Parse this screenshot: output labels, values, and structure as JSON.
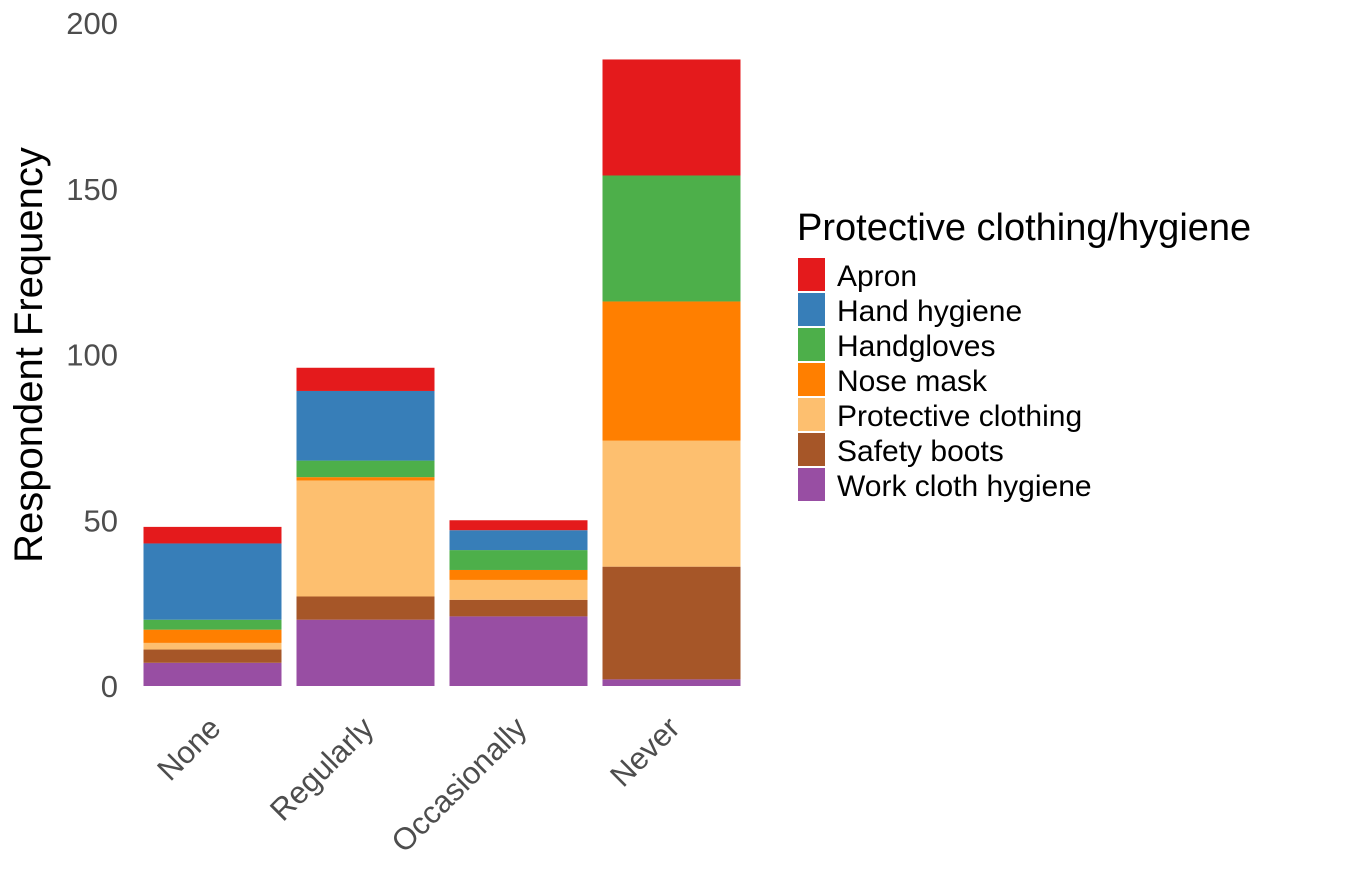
{
  "chart_data": {
    "type": "bar",
    "stacked": true,
    "title": "",
    "xlabel": "",
    "ylabel": "Respondent Frequency",
    "ylim": [
      0,
      200
    ],
    "yticks": [
      0,
      50,
      100,
      150,
      200
    ],
    "grid": false,
    "legend_position": "right",
    "legend_title": "Protective clothing/hygiene",
    "categories": [
      "None",
      "Regularly",
      "Occasionally",
      "Never"
    ],
    "series": [
      {
        "name": "Work cloth hygiene",
        "color": "#984EA3",
        "values": [
          7,
          20,
          21,
          2
        ]
      },
      {
        "name": "Safety boots",
        "color": "#A65628",
        "values": [
          4,
          7,
          5,
          34
        ]
      },
      {
        "name": "Protective clothing",
        "color": "#FDBF6F",
        "values": [
          2,
          35,
          6,
          38
        ]
      },
      {
        "name": "Nose mask",
        "color": "#FF7F00",
        "values": [
          4,
          1,
          3,
          42
        ]
      },
      {
        "name": "Handgloves",
        "color": "#4DAF4A",
        "values": [
          3,
          5,
          6,
          38
        ]
      },
      {
        "name": "Hand hygiene",
        "color": "#377EB8",
        "values": [
          23,
          21,
          6,
          0
        ]
      },
      {
        "name": "Apron",
        "color": "#E41A1C",
        "values": [
          5,
          7,
          3,
          35
        ]
      }
    ],
    "legend_order": [
      "Apron",
      "Hand hygiene",
      "Handgloves",
      "Nose mask",
      "Protective clothing",
      "Safety boots",
      "Work cloth hygiene"
    ]
  }
}
